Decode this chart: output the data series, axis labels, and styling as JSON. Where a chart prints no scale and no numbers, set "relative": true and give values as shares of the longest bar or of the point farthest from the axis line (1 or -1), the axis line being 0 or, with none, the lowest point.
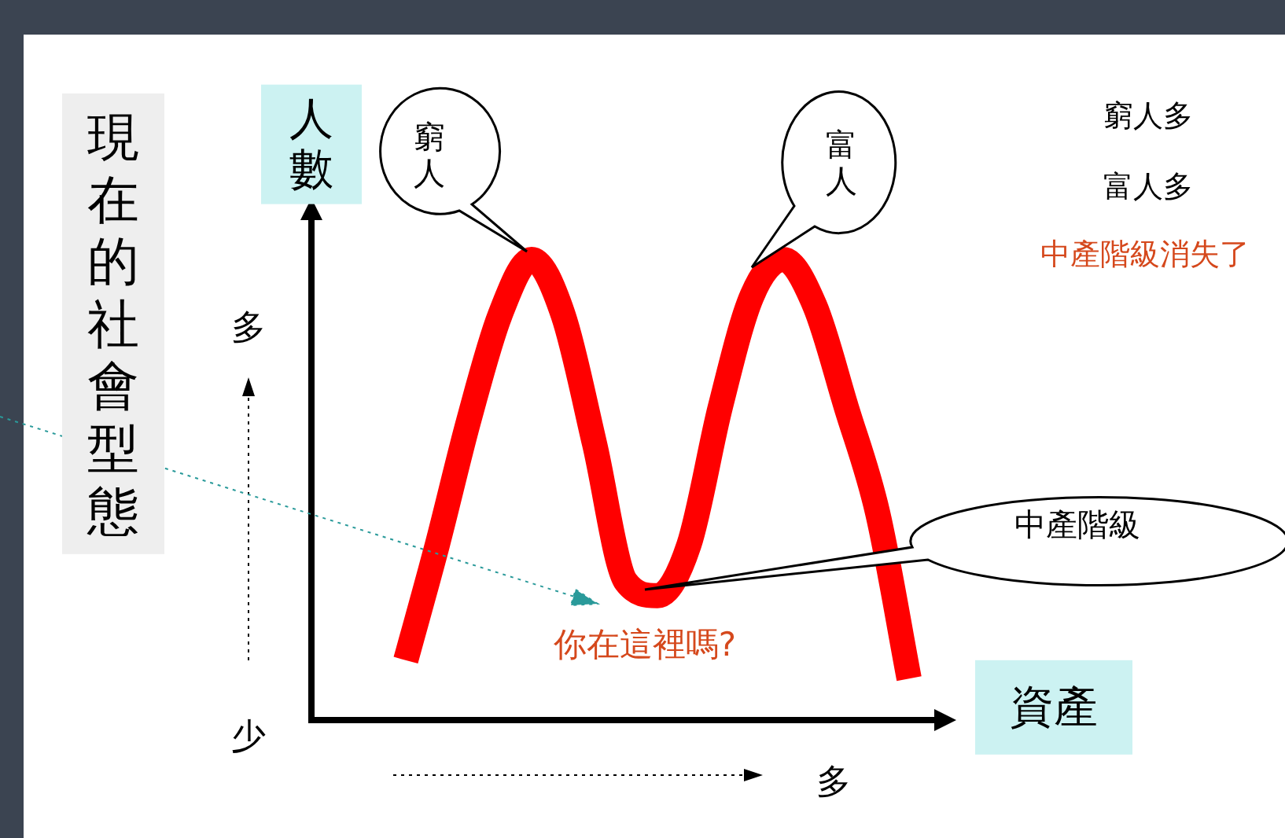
{
  "chart_data": {
    "type": "line",
    "relative": true,
    "title": "現在的社會型態",
    "ylabel": "人數",
    "xlabel": "資產",
    "categories": [
      null,
      null,
      null,
      null,
      null,
      null,
      null,
      null,
      null,
      null,
      null,
      null,
      null,
      null,
      null,
      null,
      null
    ],
    "series": [
      {
        "color": "#ff0000",
        "values": [
          0.13,
          0.38,
          0.65,
          0.88,
          1.0,
          0.88,
          0.6,
          0.3,
          0.27,
          0.38,
          0.68,
          0.92,
          1.0,
          0.9,
          0.68,
          0.45,
          0.09
        ]
      }
    ],
    "marker": "none",
    "line_style": "solid",
    "grid": false,
    "legend": false,
    "annotations": [
      "窮人",
      "富人",
      "中產階級",
      "你在這裡嗎?",
      "窮人多",
      "富人多",
      "中產階級消失了",
      "多",
      "少",
      "多"
    ]
  }
}
